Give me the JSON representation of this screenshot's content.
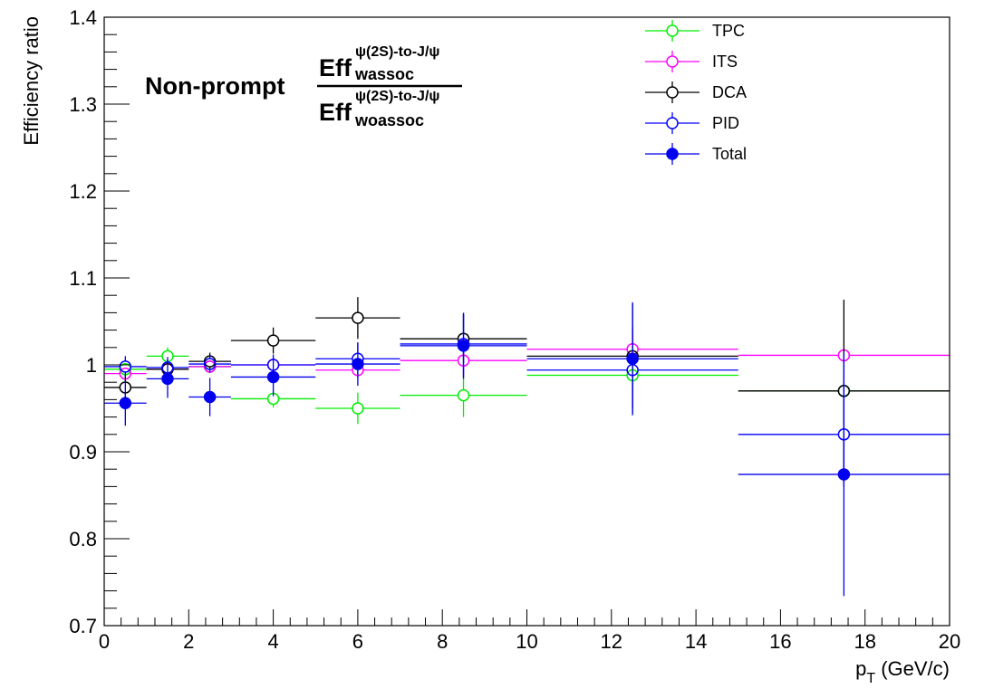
{
  "chart_data": {
    "type": "scatter",
    "title": "",
    "xlabel_main": "p",
    "xlabel_sub": "T",
    "xlabel_unit": " (GeV/c)",
    "ylabel": "Efficiency ratio",
    "xlim": [
      0,
      20
    ],
    "ylim": [
      0.7,
      1.4
    ],
    "x_ticks": [
      0,
      2,
      4,
      6,
      8,
      10,
      12,
      14,
      16,
      18,
      20
    ],
    "y_ticks": [
      0.7,
      0.8,
      0.9,
      1,
      1.1,
      1.2,
      1.3,
      1.4
    ],
    "y_tick_labels": [
      "0.7",
      "0.8",
      "0.9",
      "1",
      "1.1",
      "1.2",
      "1.3",
      "1.4"
    ],
    "grid": false,
    "legend_position": "top-right",
    "annotation": {
      "prefix": "Non-prompt",
      "numerator_main": "Eff",
      "numerator_sup": "ψ(2S)-to-J/ψ",
      "numerator_sub": "wassoc",
      "denominator_main": "Eff",
      "denominator_sup": "ψ(2S)-to-J/ψ",
      "denominator_sub": "woassoc"
    },
    "x_bins": [
      {
        "x": 0.5,
        "xlo": 0,
        "xhi": 1
      },
      {
        "x": 1.5,
        "xlo": 1,
        "xhi": 2
      },
      {
        "x": 2.5,
        "xlo": 2,
        "xhi": 3
      },
      {
        "x": 4,
        "xlo": 3,
        "xhi": 5
      },
      {
        "x": 6,
        "xlo": 5,
        "xhi": 7
      },
      {
        "x": 8.5,
        "xlo": 7,
        "xhi": 10
      },
      {
        "x": 12.5,
        "xlo": 10,
        "xhi": 15
      },
      {
        "x": 17.5,
        "xlo": 15,
        "xhi": 20
      }
    ],
    "series": [
      {
        "name": "TPC",
        "color": "#00ee00",
        "filled": false,
        "values": [
          0.995,
          1.01,
          0.998,
          0.961,
          0.95,
          0.965,
          0.988,
          0.97
        ],
        "errors": [
          0.005,
          0.01,
          0.005,
          0.01,
          0.018,
          0.025,
          0.02,
          0.0
        ]
      },
      {
        "name": "ITS",
        "color": "#ff00ff",
        "filled": false,
        "values": [
          0.99,
          0.995,
          0.998,
          1.0,
          0.994,
          1.005,
          1.018,
          1.011
        ],
        "errors": [
          0.006,
          0.006,
          0.005,
          0.006,
          0.01,
          0.02,
          0.02,
          0.0
        ]
      },
      {
        "name": "DCA",
        "color": "#000000",
        "filled": false,
        "values": [
          0.974,
          0.995,
          1.004,
          1.028,
          1.054,
          1.03,
          1.01,
          0.97
        ],
        "errors": [
          0.015,
          0.01,
          0.01,
          0.015,
          0.024,
          0.028,
          0.06,
          0.105
        ]
      },
      {
        "name": "PID",
        "color": "#0000ff",
        "filled": false,
        "values": [
          0.998,
          0.997,
          1.001,
          1.0,
          1.007,
          1.024,
          0.994,
          0.92
        ],
        "errors": [
          0.012,
          0.012,
          0.01,
          0.012,
          0.018,
          0.035,
          0.05,
          0.06
        ]
      },
      {
        "name": "Total",
        "color": "#0000ee",
        "filled": true,
        "values": [
          0.956,
          0.984,
          0.963,
          0.986,
          1.001,
          1.022,
          1.007,
          0.874
        ],
        "errors": [
          0.026,
          0.022,
          0.022,
          0.022,
          0.025,
          0.038,
          0.065,
          0.14
        ]
      }
    ]
  }
}
